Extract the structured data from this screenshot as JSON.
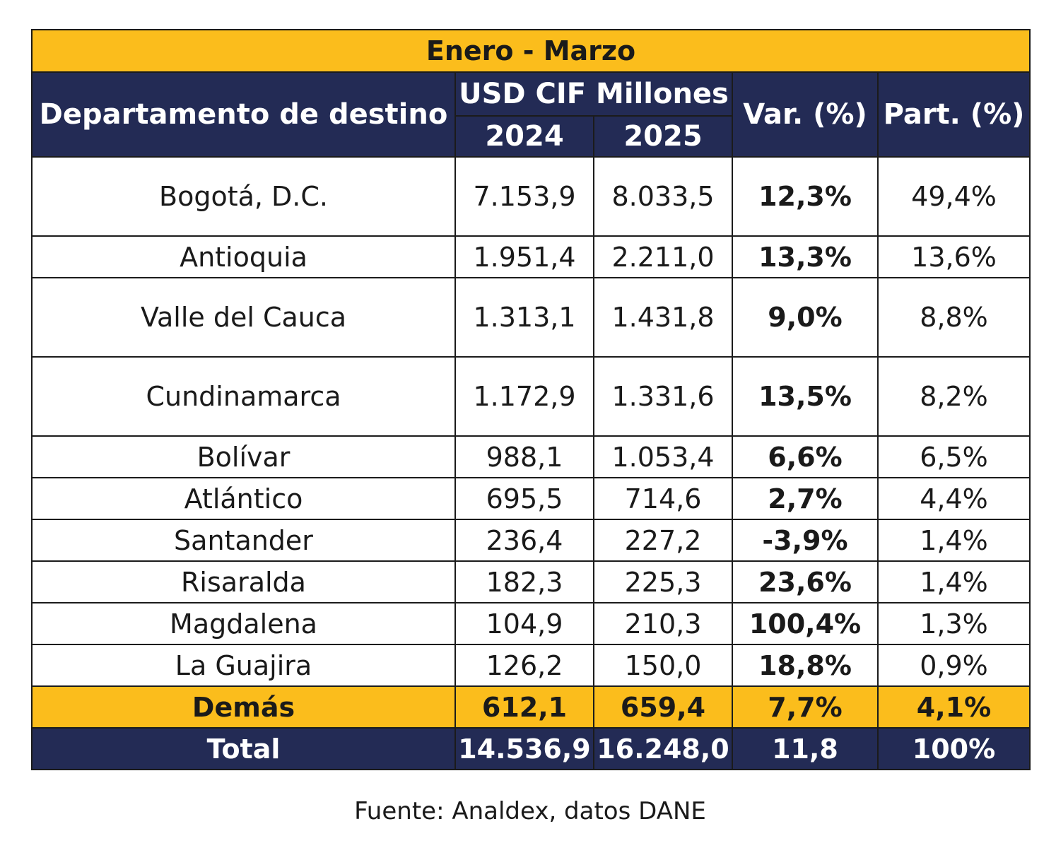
{
  "chart_data": {
    "type": "table",
    "title": "Enero - Marzo",
    "headers": {
      "department": "Departamento de destino",
      "value_group": "USD CIF Millones",
      "year_a": "2024",
      "year_b": "2025",
      "variation": "Var. (%)",
      "share": "Part. (%)"
    },
    "rows": [
      {
        "department": "Bogotá, D.C.",
        "v2024": "7.153,9",
        "v2025": "8.033,5",
        "var": "12,3%",
        "part": "49,4%"
      },
      {
        "department": "Antioquia",
        "v2024": "1.951,4",
        "v2025": "2.211,0",
        "var": "13,3%",
        "part": "13,6%"
      },
      {
        "department": "Valle del Cauca",
        "v2024": "1.313,1",
        "v2025": "1.431,8",
        "var": "9,0%",
        "part": "8,8%"
      },
      {
        "department": "Cundinamarca",
        "v2024": "1.172,9",
        "v2025": "1.331,6",
        "var": "13,5%",
        "part": "8,2%"
      },
      {
        "department": "Bolívar",
        "v2024": "988,1",
        "v2025": "1.053,4",
        "var": "6,6%",
        "part": "6,5%"
      },
      {
        "department": "Atlántico",
        "v2024": "695,5",
        "v2025": "714,6",
        "var": "2,7%",
        "part": "4,4%"
      },
      {
        "department": "Santander",
        "v2024": "236,4",
        "v2025": "227,2",
        "var": "-3,9%",
        "part": "1,4%"
      },
      {
        "department": "Risaralda",
        "v2024": "182,3",
        "v2025": "225,3",
        "var": "23,6%",
        "part": "1,4%"
      },
      {
        "department": "Magdalena",
        "v2024": "104,9",
        "v2025": "210,3",
        "var": "100,4%",
        "part": "1,3%"
      },
      {
        "department": "La Guajira",
        "v2024": "126,2",
        "v2025": "150,0",
        "var": "18,8%",
        "part": "0,9%"
      }
    ],
    "others": {
      "department": "Demás",
      "v2024": "612,1",
      "v2025": "659,4",
      "var": "7,7%",
      "part": "4,1%"
    },
    "total": {
      "department": "Total",
      "v2024": "14.536,9",
      "v2025": "16.248,0",
      "var": "11,8",
      "part": "100%"
    }
  },
  "source": "Fuente: Analdex, datos DANE",
  "colors": {
    "accent_yellow": "#fbbd1c",
    "header_navy": "#232b55",
    "border": "#1b1b1b"
  }
}
